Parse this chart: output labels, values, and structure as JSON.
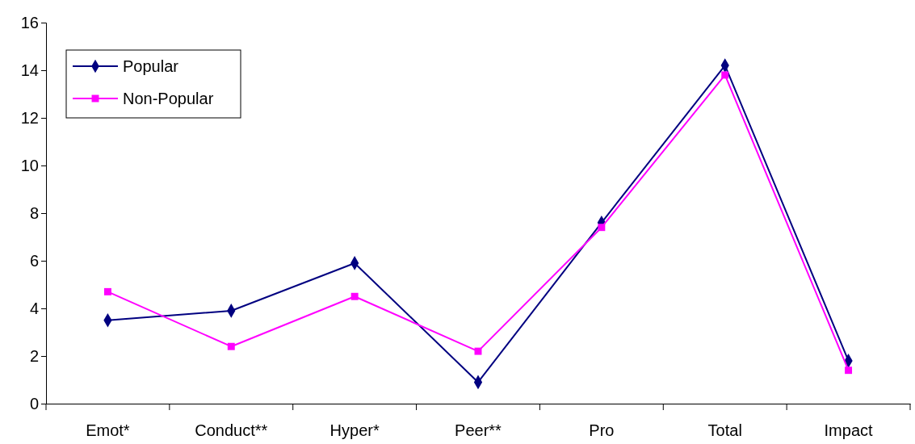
{
  "chart_data": {
    "type": "line",
    "categories": [
      "Emot*",
      "Conduct**",
      "Hyper*",
      "Peer**",
      "Pro",
      "Total",
      "Impact"
    ],
    "series": [
      {
        "name": "Popular",
        "color": "#000080",
        "marker": "diamond",
        "values": [
          3.5,
          3.9,
          5.9,
          0.9,
          7.6,
          14.2,
          1.8
        ]
      },
      {
        "name": "Non-Popular",
        "color": "#ff00ff",
        "marker": "square",
        "values": [
          4.7,
          2.4,
          4.5,
          2.2,
          7.4,
          13.8,
          1.4
        ]
      }
    ],
    "ylim": [
      0,
      16
    ],
    "yticks": [
      0,
      2,
      4,
      6,
      8,
      10,
      12,
      14,
      16
    ],
    "grid": false,
    "legend": "top left"
  }
}
